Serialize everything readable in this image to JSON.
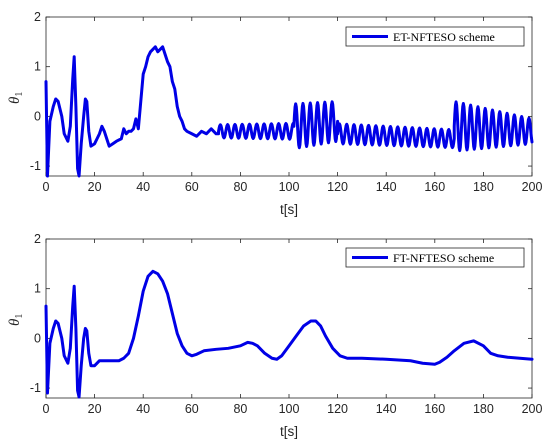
{
  "chart_data": [
    {
      "type": "line",
      "xlabel": "t[s]",
      "ylabel": "θ1",
      "ylabel_main": "θ",
      "ylabel_sub": "1",
      "xlim": [
        0,
        200
      ],
      "ylim": [
        -1.2,
        2
      ],
      "xticks": [
        "0",
        "20",
        "40",
        "60",
        "80",
        "100",
        "120",
        "140",
        "160",
        "180",
        "200"
      ],
      "yticks": [
        "-1",
        "0",
        "1",
        "2"
      ],
      "grid": false,
      "legend_position": "top-right",
      "series": [
        {
          "name": "ET-NFTESO scheme",
          "color": "#0000e6",
          "points": [
            [
              0,
              0.7
            ],
            [
              0.6,
              -1.2
            ],
            [
              1.6,
              -0.1
            ],
            [
              3,
              0.2
            ],
            [
              4,
              0.35
            ],
            [
              5,
              0.3
            ],
            [
              6.5,
              0.0
            ],
            [
              7.5,
              -0.35
            ],
            [
              9,
              -0.5
            ],
            [
              10,
              -0.2
            ],
            [
              11,
              0.75
            ],
            [
              11.6,
              1.2
            ],
            [
              12.3,
              0.2
            ],
            [
              13,
              -1.05
            ],
            [
              13.6,
              -1.2
            ],
            [
              14.5,
              -0.55
            ],
            [
              15.5,
              0.0
            ],
            [
              16.2,
              0.35
            ],
            [
              16.8,
              0.3
            ],
            [
              17.6,
              -0.3
            ],
            [
              18.5,
              -0.6
            ],
            [
              20,
              -0.55
            ],
            [
              21,
              -0.45
            ],
            [
              22,
              -0.35
            ],
            [
              23,
              -0.2
            ],
            [
              24,
              -0.3
            ],
            [
              25,
              -0.45
            ],
            [
              26,
              -0.6
            ],
            [
              27.5,
              -0.55
            ],
            [
              29,
              -0.5
            ],
            [
              31,
              -0.45
            ],
            [
              32,
              -0.25
            ],
            [
              33,
              -0.35
            ],
            [
              34,
              -0.3
            ],
            [
              35,
              -0.3
            ],
            [
              36,
              -0.25
            ],
            [
              37,
              -0.05
            ],
            [
              38,
              -0.25
            ],
            [
              39,
              0.3
            ],
            [
              40,
              0.85
            ],
            [
              41,
              1.0
            ],
            [
              42,
              1.2
            ],
            [
              43,
              1.3
            ],
            [
              44,
              1.35
            ],
            [
              45,
              1.4
            ],
            [
              46,
              1.3
            ],
            [
              47,
              1.35
            ],
            [
              48,
              1.4
            ],
            [
              49,
              1.25
            ],
            [
              50,
              1.1
            ],
            [
              51,
              1.0
            ],
            [
              52,
              0.7
            ],
            [
              53,
              0.55
            ],
            [
              54,
              0.2
            ],
            [
              55,
              0.0
            ],
            [
              56,
              -0.1
            ],
            [
              57,
              -0.25
            ],
            [
              58,
              -0.3
            ],
            [
              60,
              -0.35
            ],
            [
              62,
              -0.4
            ],
            [
              64,
              -0.3
            ],
            [
              66,
              -0.35
            ],
            [
              68,
              -0.25
            ],
            [
              70,
              -0.35
            ],
            [
              71,
              -0.35
            ]
          ],
          "oscillation_segments": [
            {
              "x": [
                71,
                102
              ],
              "center": [
                -0.3,
                -0.3
              ],
              "amplitude": [
                0.13,
                0.16
              ],
              "period": 3.0
            },
            {
              "x": [
                102,
                120
              ],
              "center": [
                -0.2,
                -0.1
              ],
              "amplitude": [
                0.45,
                0.4
              ],
              "period": 3.0
            },
            {
              "x": [
                120,
                168
              ],
              "center": [
                -0.35,
                -0.45
              ],
              "amplitude": [
                0.2,
                0.18
              ],
              "period": 3.0
            },
            {
              "x": [
                168,
                200
              ],
              "center": [
                -0.2,
                -0.3
              ],
              "amplitude": [
                0.5,
                0.25
              ],
              "period": 3.0
            }
          ]
        }
      ]
    },
    {
      "type": "line",
      "xlabel": "t[s]",
      "ylabel": "θ1",
      "ylabel_main": "θ",
      "ylabel_sub": "1",
      "xlim": [
        0,
        200
      ],
      "ylim": [
        -1.2,
        2
      ],
      "xticks": [
        "0",
        "20",
        "40",
        "60",
        "80",
        "100",
        "120",
        "140",
        "160",
        "180",
        "200"
      ],
      "yticks": [
        "-1",
        "0",
        "1",
        "2"
      ],
      "grid": false,
      "legend_position": "top-right",
      "series": [
        {
          "name": "FT-NFTESO scheme",
          "color": "#0000e6",
          "points": [
            [
              0,
              0.65
            ],
            [
              0.6,
              -1.1
            ],
            [
              1.6,
              -0.1
            ],
            [
              3,
              0.2
            ],
            [
              4,
              0.35
            ],
            [
              5,
              0.3
            ],
            [
              6.5,
              0.0
            ],
            [
              7.5,
              -0.35
            ],
            [
              9,
              -0.5
            ],
            [
              10,
              -0.2
            ],
            [
              11,
              0.65
            ],
            [
              11.6,
              1.05
            ],
            [
              12.3,
              0.2
            ],
            [
              13,
              -1.05
            ],
            [
              13.6,
              -1.18
            ],
            [
              14.5,
              -0.55
            ],
            [
              15.5,
              0.0
            ],
            [
              16.2,
              0.2
            ],
            [
              16.8,
              0.15
            ],
            [
              17.6,
              -0.3
            ],
            [
              18.5,
              -0.55
            ],
            [
              20,
              -0.55
            ],
            [
              22,
              -0.45
            ],
            [
              24,
              -0.45
            ],
            [
              27,
              -0.45
            ],
            [
              30,
              -0.45
            ],
            [
              32,
              -0.4
            ],
            [
              34,
              -0.3
            ],
            [
              36,
              0.0
            ],
            [
              38,
              0.45
            ],
            [
              40,
              0.95
            ],
            [
              42,
              1.25
            ],
            [
              44,
              1.35
            ],
            [
              46,
              1.3
            ],
            [
              48,
              1.15
            ],
            [
              50,
              0.9
            ],
            [
              52,
              0.5
            ],
            [
              54,
              0.1
            ],
            [
              56,
              -0.15
            ],
            [
              58,
              -0.3
            ],
            [
              60,
              -0.35
            ],
            [
              62,
              -0.32
            ],
            [
              65,
              -0.25
            ],
            [
              70,
              -0.22
            ],
            [
              75,
              -0.2
            ],
            [
              80,
              -0.15
            ],
            [
              83,
              -0.08
            ],
            [
              85,
              -0.1
            ],
            [
              87,
              -0.15
            ],
            [
              90,
              -0.3
            ],
            [
              93,
              -0.4
            ],
            [
              95,
              -0.42
            ],
            [
              97,
              -0.35
            ],
            [
              100,
              -0.15
            ],
            [
              103,
              0.05
            ],
            [
              106,
              0.25
            ],
            [
              109,
              0.35
            ],
            [
              111,
              0.35
            ],
            [
              113,
              0.25
            ],
            [
              115,
              0.05
            ],
            [
              118,
              -0.2
            ],
            [
              121,
              -0.35
            ],
            [
              124,
              -0.4
            ],
            [
              130,
              -0.4
            ],
            [
              140,
              -0.42
            ],
            [
              150,
              -0.45
            ],
            [
              155,
              -0.5
            ],
            [
              160,
              -0.52
            ],
            [
              162,
              -0.48
            ],
            [
              165,
              -0.38
            ],
            [
              168,
              -0.25
            ],
            [
              172,
              -0.1
            ],
            [
              176,
              -0.05
            ],
            [
              180,
              -0.15
            ],
            [
              183,
              -0.3
            ],
            [
              186,
              -0.35
            ],
            [
              190,
              -0.38
            ],
            [
              195,
              -0.4
            ],
            [
              200,
              -0.42
            ]
          ]
        }
      ]
    }
  ]
}
